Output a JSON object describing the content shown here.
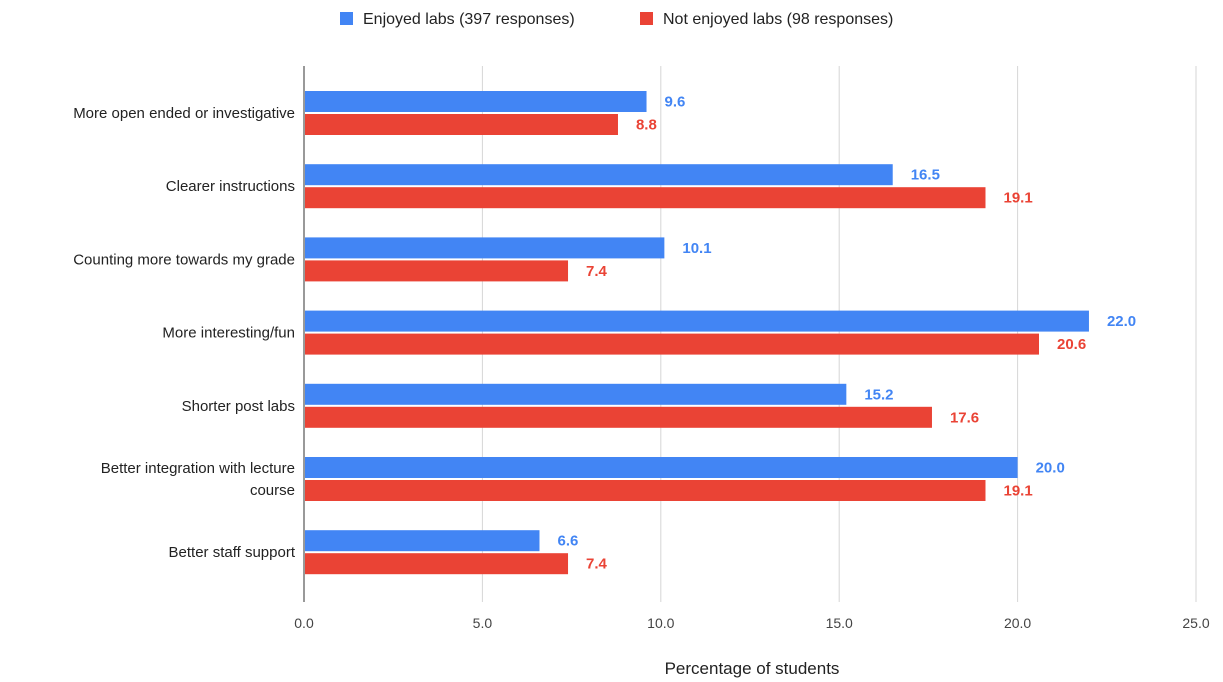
{
  "chart_data": {
    "type": "bar",
    "orientation": "horizontal",
    "categories": [
      [
        "More open ended or investigative"
      ],
      [
        "Clearer instructions"
      ],
      [
        "Counting more towards my grade"
      ],
      [
        "More interesting/fun"
      ],
      [
        "Shorter post labs"
      ],
      [
        "Better integration with lecture",
        "course"
      ],
      [
        "Better staff support"
      ]
    ],
    "series": [
      {
        "name": "Enjoyed labs (397 responses)",
        "color": "#4285f4",
        "values": [
          9.6,
          16.5,
          10.1,
          22.0,
          15.2,
          20.0,
          6.6
        ]
      },
      {
        "name": "Not enjoyed labs (98 responses)",
        "color": "#ea4335",
        "values": [
          8.8,
          19.1,
          7.4,
          20.6,
          17.6,
          19.1,
          7.4
        ]
      }
    ],
    "xlabel": "Percentage of students",
    "ylabel": "",
    "xlim": [
      0,
      25
    ],
    "xticks": [
      "0.0",
      "5.0",
      "10.0",
      "15.0",
      "20.0",
      "25.0"
    ],
    "grid": true,
    "legend": "top-center"
  }
}
